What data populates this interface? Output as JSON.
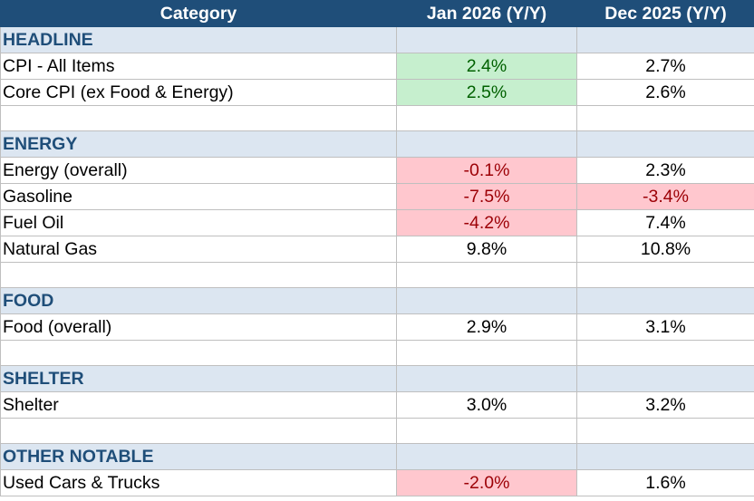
{
  "table": {
    "headers": [
      "Category",
      "Jan 2026 (Y/Y)",
      "Dec 2025 (Y/Y)"
    ],
    "rows": [
      {
        "type": "section",
        "label": "HEADLINE"
      },
      {
        "type": "data",
        "label": "CPI - All Items",
        "jan": "2.4%",
        "dec": "2.7%",
        "jan_status": "positive",
        "dec_status": "none"
      },
      {
        "type": "data",
        "label": "Core CPI (ex Food & Energy)",
        "jan": "2.5%",
        "dec": "2.6%",
        "jan_status": "positive",
        "dec_status": "none"
      },
      {
        "type": "blank"
      },
      {
        "type": "section",
        "label": "ENERGY"
      },
      {
        "type": "data",
        "label": "Energy (overall)",
        "jan": "-0.1%",
        "dec": "2.3%",
        "jan_status": "negative",
        "dec_status": "none"
      },
      {
        "type": "data",
        "label": "Gasoline",
        "jan": "-7.5%",
        "dec": "-3.4%",
        "jan_status": "negative",
        "dec_status": "negative"
      },
      {
        "type": "data",
        "label": "Fuel Oil",
        "jan": "-4.2%",
        "dec": "7.4%",
        "jan_status": "negative",
        "dec_status": "none"
      },
      {
        "type": "data",
        "label": "Natural Gas",
        "jan": "9.8%",
        "dec": "10.8%",
        "jan_status": "none",
        "dec_status": "none"
      },
      {
        "type": "blank"
      },
      {
        "type": "section",
        "label": "FOOD"
      },
      {
        "type": "data",
        "label": "Food (overall)",
        "jan": "2.9%",
        "dec": "3.1%",
        "jan_status": "none",
        "dec_status": "none"
      },
      {
        "type": "blank"
      },
      {
        "type": "section",
        "label": "SHELTER"
      },
      {
        "type": "data",
        "label": "Shelter",
        "jan": "3.0%",
        "dec": "3.2%",
        "jan_status": "none",
        "dec_status": "none"
      },
      {
        "type": "blank"
      },
      {
        "type": "section",
        "label": "OTHER NOTABLE"
      },
      {
        "type": "data",
        "label": "Used Cars & Trucks",
        "jan": "-2.0%",
        "dec": "1.6%",
        "jan_status": "negative",
        "dec_status": "none"
      }
    ]
  },
  "colors": {
    "header_bg": "#1f4e79",
    "header_text": "#ffffff",
    "section_bg": "#dce6f1",
    "section_text": "#1f4e79",
    "positive_bg": "#c6efce",
    "positive_text": "#006100",
    "negative_bg": "#ffc7ce",
    "negative_text": "#9c0006"
  }
}
